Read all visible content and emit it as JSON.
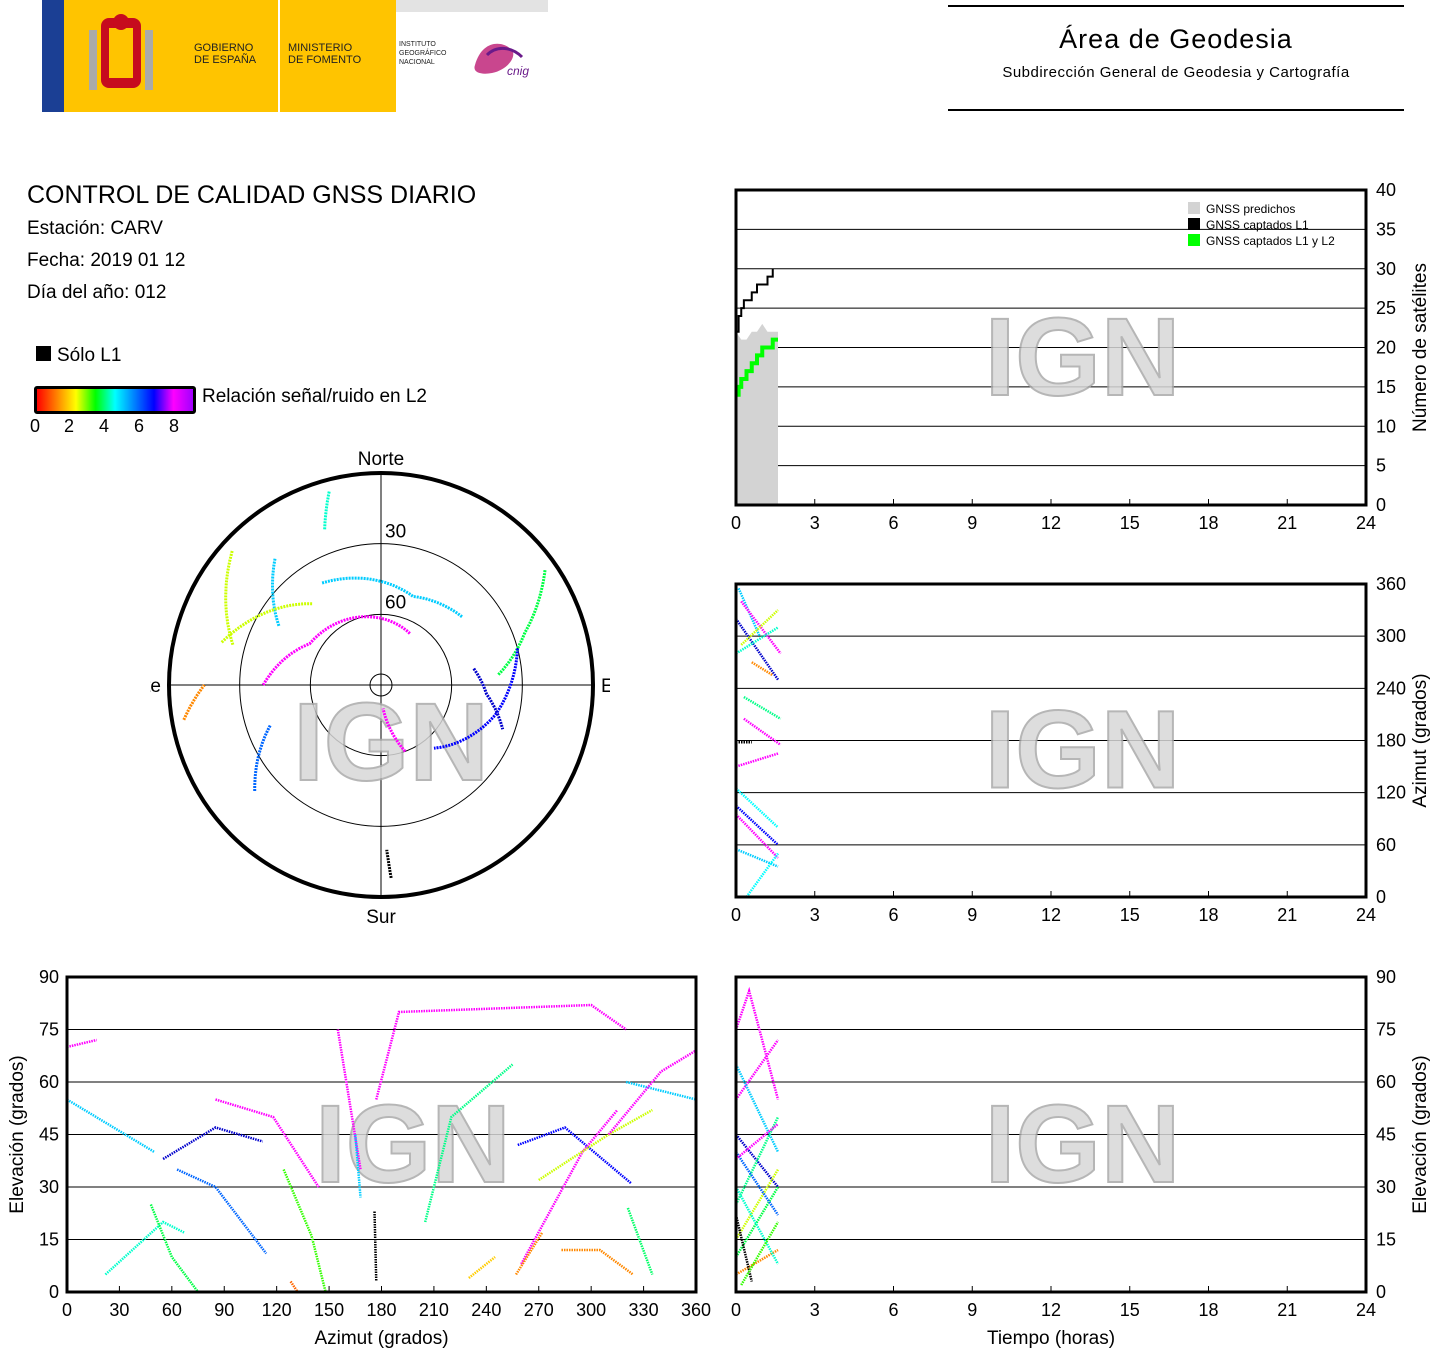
{
  "header": {
    "gobierno": "GOBIERNO\nDE ESPAÑA",
    "gobierno_l1": "GOBIERNO",
    "gobierno_l2": "DE ESPAÑA",
    "ministerio_l1": "MINISTERIO",
    "ministerio_l2": "DE FOMENTO",
    "ign_l1": "INSTITUTO",
    "ign_l2": "GEOGRÁFICO",
    "ign_l3": "NACIONAL",
    "cnig": "cnig",
    "area_title": "Área de Geodesia",
    "area_subtitle": "Subdirección General de Geodesia y Cartografía"
  },
  "report": {
    "title": "CONTROL DE CALIDAD GNSS DIARIO",
    "station": "Estación: CARV",
    "date": "Fecha: 2019 01 12",
    "doy": "Día del año: 012"
  },
  "legend": {
    "l1_only": "Sólo L1",
    "snr_label": "Relación señal/ruido en L2",
    "snr_ticks": [
      "0",
      "2",
      "4",
      "6",
      "8"
    ]
  },
  "watermark": "IGN",
  "colors": {
    "predicted": "#d3d3d3",
    "captured_l1": "#000000",
    "captured_l1_l2": "#00ff00"
  },
  "chart_data": [
    {
      "type": "line",
      "id": "satellites_vs_time",
      "ylabel": "Número de satélites",
      "xlim": [
        0,
        24
      ],
      "ylim": [
        0,
        40
      ],
      "xticks": [
        "0",
        "3",
        "6",
        "9",
        "12",
        "15",
        "18",
        "21",
        "24"
      ],
      "yticks": [
        "0",
        "5",
        "10",
        "15",
        "20",
        "25",
        "30",
        "35",
        "40"
      ],
      "legend_position": "top-right",
      "grid": true,
      "series": [
        {
          "name": "GNSS predichos",
          "kind": "area",
          "color": "#d3d3d3",
          "x": [
            0,
            0.2,
            0.4,
            0.6,
            0.8,
            1.0,
            1.2,
            1.4,
            1.6
          ],
          "y": [
            22,
            21,
            21,
            22,
            22,
            23,
            22,
            22,
            22
          ]
        },
        {
          "name": "GNSS captados L1",
          "kind": "step",
          "color": "#000000",
          "x": [
            0.05,
            0.1,
            0.2,
            0.3,
            0.5,
            0.6,
            0.8,
            1.0,
            1.2,
            1.4
          ],
          "y": [
            22,
            24,
            25,
            26,
            26,
            27,
            28,
            28,
            29,
            30
          ]
        },
        {
          "name": "GNSS captados L1 y L2",
          "kind": "step",
          "color": "#00ff00",
          "x": [
            0.05,
            0.1,
            0.2,
            0.4,
            0.6,
            0.8,
            1.0,
            1.2,
            1.4,
            1.6
          ],
          "y": [
            14,
            15,
            16,
            17,
            18,
            19,
            20,
            20,
            21,
            21
          ]
        }
      ]
    },
    {
      "type": "scatter",
      "id": "azimuth_vs_time",
      "ylabel": "Azimut (grados)",
      "xlim": [
        0,
        24
      ],
      "ylim": [
        0,
        360
      ],
      "xticks": [
        "0",
        "3",
        "6",
        "9",
        "12",
        "15",
        "18",
        "21",
        "24"
      ],
      "yticks": [
        "0",
        "60",
        "120",
        "180",
        "240",
        "300",
        "360"
      ],
      "grid": true,
      "series": [
        {
          "color": "#00ccff",
          "x": [
            0.1,
            0.9
          ],
          "y": [
            355,
            300
          ]
        },
        {
          "color": "#0000cc",
          "x": [
            0.0,
            1.6
          ],
          "y": [
            320,
            250
          ]
        },
        {
          "color": "#ff00ff",
          "x": [
            0.2,
            1.7
          ],
          "y": [
            340,
            280
          ]
        },
        {
          "color": "#ccff00",
          "x": [
            0.2,
            1.6
          ],
          "y": [
            290,
            330
          ]
        },
        {
          "color": "#00ff88",
          "x": [
            0.3,
            1.7
          ],
          "y": [
            230,
            205
          ]
        },
        {
          "color": "#ff00ff",
          "x": [
            0.3,
            1.7
          ],
          "y": [
            205,
            175
          ]
        },
        {
          "color": "#00ffcc",
          "x": [
            0.0,
            1.6
          ],
          "y": [
            280,
            310
          ]
        },
        {
          "color": "#ff8800",
          "x": [
            0.6,
            1.4
          ],
          "y": [
            270,
            255
          ]
        },
        {
          "color": "#ff00ff",
          "x": [
            0.0,
            1.6
          ],
          "y": [
            150,
            165
          ]
        },
        {
          "color": "#00ffff",
          "x": [
            0.0,
            1.6
          ],
          "y": [
            125,
            80
          ]
        },
        {
          "color": "#0000ff",
          "x": [
            0.0,
            1.6
          ],
          "y": [
            105,
            60
          ]
        },
        {
          "color": "#ff00ff",
          "x": [
            0.0,
            1.6
          ],
          "y": [
            95,
            45
          ]
        },
        {
          "color": "#00ccff",
          "x": [
            0.0,
            1.6
          ],
          "y": [
            55,
            35
          ]
        },
        {
          "color": "#00ffff",
          "x": [
            0.4,
            1.6
          ],
          "y": [
            0,
            50
          ]
        },
        {
          "color": "#000000",
          "x": [
            0.0,
            0.6
          ],
          "y": [
            178,
            178
          ]
        }
      ]
    },
    {
      "type": "scatter",
      "id": "elevation_vs_azimuth",
      "xlabel": "Azimut (grados)",
      "ylabel": "Elevación (grados)",
      "xlim": [
        0,
        360
      ],
      "ylim": [
        0,
        90
      ],
      "xticks": [
        "0",
        "30",
        "60",
        "90",
        "120",
        "150",
        "180",
        "210",
        "240",
        "270",
        "300",
        "330",
        "360"
      ],
      "yticks": [
        "0",
        "15",
        "30",
        "45",
        "60",
        "75",
        "90"
      ],
      "grid": true,
      "series": [
        {
          "color": "#ff00ff",
          "x": [
            0,
            17
          ],
          "y": [
            70,
            72
          ]
        },
        {
          "color": "#00ccff",
          "x": [
            0,
            50
          ],
          "y": [
            55,
            40
          ]
        },
        {
          "color": "#00ffcc",
          "x": [
            22,
            55,
            67
          ],
          "y": [
            5,
            20,
            17
          ]
        },
        {
          "color": "#00ff44",
          "x": [
            48,
            60,
            75
          ],
          "y": [
            25,
            10,
            0
          ]
        },
        {
          "color": "#0000cc",
          "x": [
            55,
            85,
            112
          ],
          "y": [
            38,
            47,
            43
          ]
        },
        {
          "color": "#0066ff",
          "x": [
            63,
            85,
            114
          ],
          "y": [
            35,
            30,
            11
          ]
        },
        {
          "color": "#ff00ff",
          "x": [
            85,
            118,
            144
          ],
          "y": [
            55,
            50,
            30
          ]
        },
        {
          "color": "#33ff00",
          "x": [
            124,
            140,
            148
          ],
          "y": [
            35,
            16,
            0
          ]
        },
        {
          "color": "#ff00ff",
          "x": [
            155,
            168
          ],
          "y": [
            75,
            35
          ]
        },
        {
          "color": "#ff00ff",
          "x": [
            177,
            190,
            300,
            320
          ],
          "y": [
            55,
            80,
            82,
            75
          ]
        },
        {
          "color": "#000000",
          "x": [
            176,
            177
          ],
          "y": [
            23,
            3
          ]
        },
        {
          "color": "#00ccff",
          "x": [
            165,
            168
          ],
          "y": [
            45,
            27
          ]
        },
        {
          "color": "#00ff88",
          "x": [
            205,
            220,
            255
          ],
          "y": [
            20,
            50,
            65
          ]
        },
        {
          "color": "#0000ff",
          "x": [
            258,
            285,
            323
          ],
          "y": [
            42,
            47,
            31
          ]
        },
        {
          "color": "#ff00ff",
          "x": [
            260,
            295,
            315
          ],
          "y": [
            8,
            40,
            52
          ]
        },
        {
          "color": "#ccff00",
          "x": [
            270,
            310,
            335
          ],
          "y": [
            32,
            45,
            52
          ]
        },
        {
          "color": "#ff8800",
          "x": [
            283,
            305,
            324
          ],
          "y": [
            12,
            12,
            5
          ]
        },
        {
          "color": "#00ccff",
          "x": [
            320,
            360
          ],
          "y": [
            60,
            55
          ]
        },
        {
          "color": "#ff00ff",
          "x": [
            310,
            340,
            360
          ],
          "y": [
            45,
            63,
            69
          ]
        },
        {
          "color": "#00ff66",
          "x": [
            321,
            335
          ],
          "y": [
            24,
            5
          ]
        },
        {
          "color": "#ffcc00",
          "x": [
            230,
            245
          ],
          "y": [
            4,
            10
          ]
        },
        {
          "color": "#ff8800",
          "x": [
            257,
            272
          ],
          "y": [
            5,
            17
          ]
        },
        {
          "color": "#ff6600",
          "x": [
            128,
            132
          ],
          "y": [
            3,
            0
          ]
        }
      ]
    },
    {
      "type": "scatter",
      "id": "elevation_vs_time",
      "xlabel": "Tiempo (horas)",
      "ylabel": "Elevación (grados)",
      "xlim": [
        0,
        24
      ],
      "ylim": [
        0,
        90
      ],
      "xticks": [
        "0",
        "3",
        "6",
        "9",
        "12",
        "15",
        "18",
        "21",
        "24"
      ],
      "yticks": [
        "0",
        "15",
        "30",
        "45",
        "60",
        "75",
        "90"
      ],
      "grid": true,
      "series": [
        {
          "color": "#ff00ff",
          "x": [
            0.0,
            0.5,
            1.6
          ],
          "y": [
            75,
            86,
            55
          ]
        },
        {
          "color": "#ff00ff",
          "x": [
            0.0,
            1.6
          ],
          "y": [
            55,
            72
          ]
        },
        {
          "color": "#00ccff",
          "x": [
            0.0,
            1.6
          ],
          "y": [
            65,
            40
          ]
        },
        {
          "color": "#0000cc",
          "x": [
            0.0,
            1.6
          ],
          "y": [
            45,
            30
          ]
        },
        {
          "color": "#00ff88",
          "x": [
            0.0,
            1.6
          ],
          "y": [
            25,
            50
          ]
        },
        {
          "color": "#ccff00",
          "x": [
            0.0,
            1.6
          ],
          "y": [
            15,
            35
          ]
        },
        {
          "color": "#00ff44",
          "x": [
            0.0,
            1.6
          ],
          "y": [
            10,
            30
          ]
        },
        {
          "color": "#ff8800",
          "x": [
            0.0,
            1.6
          ],
          "y": [
            5,
            12
          ]
        },
        {
          "color": "#00ffcc",
          "x": [
            0.0,
            1.6
          ],
          "y": [
            30,
            8
          ]
        },
        {
          "color": "#0066ff",
          "x": [
            0.0,
            1.6
          ],
          "y": [
            40,
            22
          ]
        },
        {
          "color": "#ff00ff",
          "x": [
            0.0,
            1.6
          ],
          "y": [
            38,
            48
          ]
        },
        {
          "color": "#000000",
          "x": [
            0.0,
            0.6
          ],
          "y": [
            22,
            3
          ]
        },
        {
          "color": "#33ff00",
          "x": [
            0.2,
            1.6
          ],
          "y": [
            2,
            20
          ]
        }
      ]
    },
    {
      "type": "scatter",
      "id": "skyplot",
      "projection": "polar",
      "labels": {
        "north": "Norte",
        "south": "Sur",
        "east": "Este",
        "west": "Oeste"
      },
      "rings": [
        "30",
        "60"
      ],
      "note": "azimuth/elevation tracks",
      "series": [
        {
          "color": "#00ccff",
          "az": [
            320,
            300
          ],
          "el": [
            20,
            40
          ]
        },
        {
          "color": "#ccff00",
          "az": [
            312,
            285
          ],
          "el": [
            5,
            25
          ]
        },
        {
          "color": "#00ffcc",
          "az": [
            345,
            340
          ],
          "el": [
            5,
            20
          ]
        },
        {
          "color": "#00ff44",
          "az": [
            55,
            70,
            85
          ],
          "el": [
            5,
            25,
            40
          ]
        },
        {
          "color": "#0000ff",
          "az": [
            75,
            105,
            140
          ],
          "el": [
            30,
            40,
            55
          ]
        },
        {
          "color": "#ff00ff",
          "az": [
            270,
            300,
            30
          ],
          "el": [
            40,
            55,
            65
          ]
        },
        {
          "color": "#00ccff",
          "az": [
            330,
            20,
            50
          ],
          "el": [
            40,
            50,
            45
          ]
        },
        {
          "color": "#0000cc",
          "az": [
            80,
            95,
            110
          ],
          "el": [
            50,
            45,
            35
          ]
        },
        {
          "color": "#ff00ff",
          "az": [
            160,
            175
          ],
          "el": [
            60,
            80
          ]
        },
        {
          "color": "#000000",
          "az": [
            177,
            178
          ],
          "el": [
            8,
            20
          ]
        },
        {
          "color": "#0066ff",
          "az": [
            230,
            250
          ],
          "el": [
            20,
            40
          ]
        },
        {
          "color": "#ccff00",
          "az": [
            285,
            320
          ],
          "el": [
            20,
            45
          ]
        },
        {
          "color": "#ff8800",
          "az": [
            260,
            270
          ],
          "el": [
            5,
            15
          ]
        }
      ]
    }
  ]
}
